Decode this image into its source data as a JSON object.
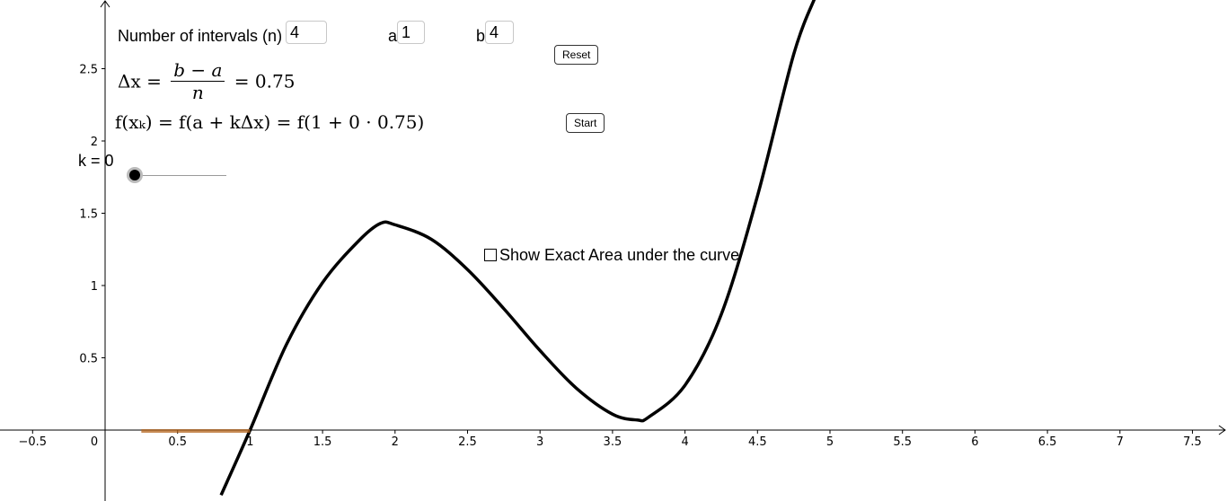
{
  "controls": {
    "intervals_label": "Number of intervals (n)",
    "intervals_value": "4",
    "a_label": "a",
    "a_value": "1",
    "b_label": "b",
    "b_value": "4",
    "reset_label": "Reset",
    "start_label": "Start",
    "k_label": "k = 0",
    "k_value": 0,
    "exact_area_label": "Show Exact Area under the curve",
    "exact_area_checked": false
  },
  "formulas": {
    "dx_lhs": "Δx =",
    "dx_num": "b − a",
    "dx_den": "n",
    "dx_rhs": "= 0.75",
    "fxk": "f(xₖ) = f(a + kΔx) = f(1 + 0 · 0.75)"
  },
  "colors": {
    "curve": "#000000",
    "riemann_segment": "#b5651d",
    "slider_handle": "#000000"
  },
  "chart_data": {
    "type": "line",
    "function": "f(x) = 0.3(x−1)(x−2.8)^2 + ... (cubic through (1,0), local max ≈ (1.9,1.43), local min ≈ (3.67,0.07))",
    "series": [
      {
        "x": [
          0.8,
          1.0,
          1.25,
          1.5,
          1.75,
          1.9,
          2.0,
          2.25,
          2.5,
          2.75,
          3.0,
          3.25,
          3.5,
          3.67,
          3.75,
          4.0,
          4.25,
          4.5,
          4.75,
          4.9
        ],
        "y": [
          -0.45,
          0.0,
          0.59,
          1.02,
          1.31,
          1.43,
          1.42,
          1.32,
          1.11,
          0.84,
          0.55,
          0.29,
          0.11,
          0.07,
          0.09,
          0.31,
          0.8,
          1.62,
          2.6,
          3.0
        ]
      }
    ],
    "x_ticks": [
      "−0.5",
      "0",
      "0.5",
      "1",
      "1.5",
      "2",
      "2.5",
      "3",
      "3.5",
      "4",
      "4.5",
      "5",
      "5.5",
      "6",
      "6.5",
      "7",
      "7.5"
    ],
    "y_ticks": [
      "0.5",
      "1",
      "1.5",
      "2",
      "2.5"
    ],
    "xlim": [
      -0.75,
      7.75
    ],
    "ylim": [
      -0.48,
      3.0
    ],
    "grid": false,
    "riemann_segment": {
      "x_start": 0.25,
      "x_end": 1.0
    }
  }
}
